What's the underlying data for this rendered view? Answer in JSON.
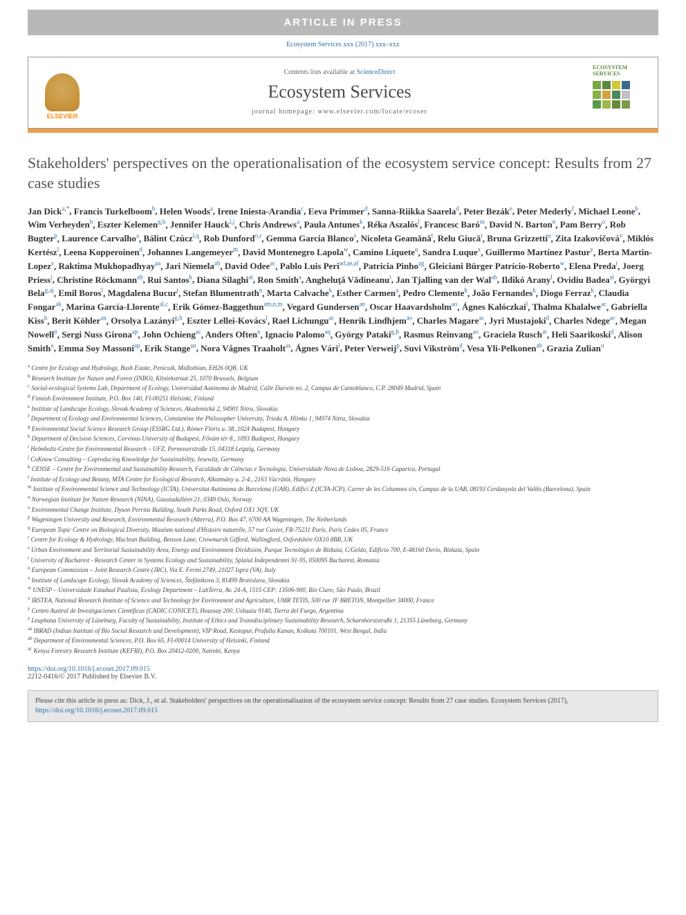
{
  "banner": "ARTICLE IN PRESS",
  "citation_header": "Ecosystem Services xxx (2017) xxx–xxx",
  "header": {
    "contents_prefix": "Contents lists available at ",
    "contents_link": "ScienceDirect",
    "journal_name": "Ecosystem Services",
    "homepage_label": "journal homepage: www.elsevier.com/locate/ecoser",
    "elsevier_label": "ELSEVIER",
    "journal_logo_text": "ECOSYSTEM SERVICES"
  },
  "title": "Stakeholders' perspectives on the operationalisation of the ecosystem service concept: Results from 27 case studies",
  "authors": [
    {
      "n": "Jan Dick",
      "s": "a,*"
    },
    {
      "n": "Francis Turkelboom",
      "s": "b"
    },
    {
      "n": "Helen Woods",
      "s": "a"
    },
    {
      "n": "Irene Iniesta-Arandia",
      "s": "c"
    },
    {
      "n": "Eeva Primmer",
      "s": "d"
    },
    {
      "n": "Sanna-Riikka Saarela",
      "s": "d"
    },
    {
      "n": "Peter Bezák",
      "s": "e"
    },
    {
      "n": "Peter Mederly",
      "s": "f"
    },
    {
      "n": "Michael Leone",
      "s": "b"
    },
    {
      "n": "Wim Verheyden",
      "s": "b"
    },
    {
      "n": "Eszter Kelemen",
      "s": "g,h"
    },
    {
      "n": "Jennifer Hauck",
      "s": "i,j"
    },
    {
      "n": "Chris Andrews",
      "s": "a"
    },
    {
      "n": "Paula Antunes",
      "s": "k"
    },
    {
      "n": "Réka Aszalós",
      "s": "l"
    },
    {
      "n": "Francesc Baró",
      "s": "m"
    },
    {
      "n": "David N. Barton",
      "s": "n"
    },
    {
      "n": "Pam Berry",
      "s": "o"
    },
    {
      "n": "Rob Bugter",
      "s": "p"
    },
    {
      "n": "Laurence Carvalho",
      "s": "a"
    },
    {
      "n": "Bálint Czúcz",
      "s": "l,q"
    },
    {
      "n": "Rob Dunford",
      "s": "o,r"
    },
    {
      "n": "Gemma Garcia Blanco",
      "s": "s"
    },
    {
      "n": "Nicoleta Geamănă",
      "s": "t"
    },
    {
      "n": "Relu Giucă",
      "s": "t"
    },
    {
      "n": "Bruna Grizzetti",
      "s": "u"
    },
    {
      "n": "Zita Izakovičová",
      "s": "v"
    },
    {
      "n": "Miklós Kertész",
      "s": "l"
    },
    {
      "n": "Leena Kopperoinen",
      "s": "d"
    },
    {
      "n": "Johannes Langemeyer",
      "s": "m"
    },
    {
      "n": "David Montenegro Lapola",
      "s": "w"
    },
    {
      "n": "Camino Liquete",
      "s": "u"
    },
    {
      "n": "Sandra Luque",
      "s": "x"
    },
    {
      "n": "Guillermo Martínez Pastur",
      "s": "y"
    },
    {
      "n": "Berta Martin-Lopez",
      "s": "z"
    },
    {
      "n": "Raktima Mukhopadhyay",
      "s": "aa"
    },
    {
      "n": "Jari Niemela",
      "s": "ab"
    },
    {
      "n": "David Odee",
      "s": "ac"
    },
    {
      "n": "Pablo Luis Peri",
      "s": "ad,ae,af"
    },
    {
      "n": "Patricia Pinho",
      "s": "ag"
    },
    {
      "n": "Gleiciani Bürger Patrício-Roberto",
      "s": "w"
    },
    {
      "n": "Elena Preda",
      "s": "t"
    },
    {
      "n": "Joerg Priess",
      "s": "i"
    },
    {
      "n": "Christine Röckmann",
      "s": "ah"
    },
    {
      "n": "Rui Santos",
      "s": "k"
    },
    {
      "n": "Diana Silaghi",
      "s": "ai"
    },
    {
      "n": "Ron Smith",
      "s": "a"
    },
    {
      "n": "Angheluţă Vădineanu",
      "s": "t"
    },
    {
      "n": "Jan Tjalling van der Wal",
      "s": "ah"
    },
    {
      "n": "Ildikó Arany",
      "s": "l"
    },
    {
      "n": "Ovidiu Badea",
      "s": "ai"
    },
    {
      "n": "Györgyi Bela",
      "s": "g,aj"
    },
    {
      "n": "Emil Boros",
      "s": "l"
    },
    {
      "n": "Magdalena Bucur",
      "s": "t"
    },
    {
      "n": "Stefan Blumentrath",
      "s": "n"
    },
    {
      "n": "Marta Calvache",
      "s": "k"
    },
    {
      "n": "Esther Carmen",
      "s": "a"
    },
    {
      "n": "Pedro Clemente",
      "s": "k"
    },
    {
      "n": "João Fernandes",
      "s": "k"
    },
    {
      "n": "Diogo Ferraz",
      "s": "k"
    },
    {
      "n": "Claudia Fongar",
      "s": "ak"
    },
    {
      "n": "Marina García-Llorente",
      "s": "al,c"
    },
    {
      "n": "Erik Gómez-Baggethun",
      "s": "am,n,m"
    },
    {
      "n": "Vegard Gundersen",
      "s": "an"
    },
    {
      "n": "Oscar Haavardsholm",
      "s": "ao"
    },
    {
      "n": "Ágnes Kalóczkai",
      "s": "l"
    },
    {
      "n": "Thalma Khalalwe",
      "s": "ac"
    },
    {
      "n": "Gabriella Kiss",
      "s": "h"
    },
    {
      "n": "Berit Köhler",
      "s": "an"
    },
    {
      "n": "Orsolya Lazányi",
      "s": "g,h"
    },
    {
      "n": "Eszter Lellei-Kovács",
      "s": "l"
    },
    {
      "n": "Rael Lichungu",
      "s": "ac"
    },
    {
      "n": "Henrik Lindhjem",
      "s": "ao"
    },
    {
      "n": "Charles Magare",
      "s": "ac"
    },
    {
      "n": "Jyri Mustajoki",
      "s": "d"
    },
    {
      "n": "Charles Ndege",
      "s": "ac"
    },
    {
      "n": "Megan Nowell",
      "s": "n"
    },
    {
      "n": "Sergi Nuss Girona",
      "s": "ap"
    },
    {
      "n": "John Ochieng",
      "s": "ac"
    },
    {
      "n": "Anders Often",
      "s": "n"
    },
    {
      "n": "Ignacio Palomo",
      "s": "aq"
    },
    {
      "n": "György Pataki",
      "s": "g,h"
    },
    {
      "n": "Rasmus Reinvang",
      "s": "ao"
    },
    {
      "n": "Graciela Rusch",
      "s": "ar"
    },
    {
      "n": "Heli Saarikoski",
      "s": "d"
    },
    {
      "n": "Alison Smith",
      "s": "o"
    },
    {
      "n": "Emma Soy Massoni",
      "s": "ap"
    },
    {
      "n": "Erik Stange",
      "s": "an"
    },
    {
      "n": "Nora Vågnes Traaholt",
      "s": "as"
    },
    {
      "n": "Ágnes Vári",
      "s": "l"
    },
    {
      "n": "Peter Verweij",
      "s": "p"
    },
    {
      "n": "Suvi Vikström",
      "s": "d"
    },
    {
      "n": "Vesa Yli-Pelkonen",
      "s": "ab"
    },
    {
      "n": "Grazia Zulian",
      "s": "u"
    }
  ],
  "affiliations": [
    {
      "s": "a",
      "t": "Centre for Ecology and Hydrology, Bush Estate, Penicuik, Midlothian, EH26 0QB, UK"
    },
    {
      "s": "b",
      "t": "Research Institute for Nature and Forest (INBO), Kliniekstraat 25, 1070 Brussels, Belgium"
    },
    {
      "s": "c",
      "t": "Social-ecological Systems Lab, Department of Ecology, Universidad Autónoma de Madrid, Calle Darwin no. 2, Campus de Cantoblanco, C.P. 28049 Madrid, Spain"
    },
    {
      "s": "d",
      "t": "Finnish Environment Institute, P.O. Box 140, FI-00251 Helsinki, Finland"
    },
    {
      "s": "e",
      "t": "Institute of Landscape Ecology, Slovak Academy of Sciences, Akademická 2, 94901 Nitra, Slovakia"
    },
    {
      "s": "f",
      "t": "Department of Ecology and Environmental Sciences, Constantine the Philosopher University, Trieda A. Hlinku 1, 94974 Nitra, Slovakia"
    },
    {
      "s": "g",
      "t": "Environmental Social Science Research Group (ESSRG Ltd.), Rómer Flóris u. 38.,1024 Budapest, Hungary"
    },
    {
      "s": "h",
      "t": "Department of Decision Sciences, Corvinus University of Budapest, Fővám tér 8., 1093 Budapest, Hungary"
    },
    {
      "s": "i",
      "t": "Helmholtz-Centre for Environmental Research – UFZ, Permoserstraße 15, 04318 Leipzig, Germany"
    },
    {
      "s": "j",
      "t": "CoKnow Consulting – Coproducing Knowledge for Sustainability, Jesewitz, Germany"
    },
    {
      "s": "k",
      "t": "CENSE – Centre for Environmental and Sustainability Research, Faculdade de Ciências e Tecnologia, Universidade Nova de Lisboa, 2829-516 Caparica, Portugal"
    },
    {
      "s": "l",
      "t": "Institute of Ecology and Botany, MTA Centre for Ecological Research, Alkotmány u. 2-4., 2163 Vácrátót, Hungary"
    },
    {
      "s": "m",
      "t": "Institute of Environmental Science and Technology (ICTA), Universitat Autònoma de Barcelona (UAB), Edifici Z (ICTA-ICP), Carrer de les Columnes s/n, Campus de la UAB, 08193 Cerdanyola del Vallès (Barcelona), Spain"
    },
    {
      "s": "n",
      "t": "Norwegian Institute for Nature Research (NINA), Gaustadalléen 21, 0349 Oslo, Norway"
    },
    {
      "s": "o",
      "t": "Environmental Change Institute, Dyson Perrins Building, South Parks Road, Oxford OX1 3QY, UK"
    },
    {
      "s": "p",
      "t": "Wageningen University and Research, Environmental Research (Alterra), P.O. Box 47, 6700 AA Wageningen, The Netherlands"
    },
    {
      "s": "q",
      "t": "European Topic Centre on Biological Diversity, Muséum national d'Histoire naturelle, 57 rue Cuvier, FR-75231 Paris, Paris Cedex 05, France"
    },
    {
      "s": "r",
      "t": "Centre for Ecology & Hydrology, Maclean Building, Benson Lane, Crowmarsh Gifford, Wallingford, Oxfordshire OX10 8BB, UK"
    },
    {
      "s": "s",
      "t": "Urban Environment and Territorial Sustainability Area, Energy and Environment Dividision, Parque Tecnológico de Bizkaia, C/Geldo, Edificio 700, E-48160 Derio, Bizkaia, Spain"
    },
    {
      "s": "t",
      "t": "University of Bucharest - Research Center in Systems Ecology and Sustainability, Splaiul Independentei 91-95, 050095 Bucharest, Romania"
    },
    {
      "s": "u",
      "t": "European Commission – Joint Research Centre (JRC), Via E. Fermi 2749, 21027 Ispra (VA), Italy"
    },
    {
      "s": "v",
      "t": "Institute of Landscape Ecology, Slovak Academy of Sciences, Štefánikova 3, 81499 Bratislava, Slovakia"
    },
    {
      "s": "w",
      "t": "UNESP – Universidade Estadual Paulista, Ecology Department – LabTerra, Av. 24-A, 1515 CEP: 13506-900, Rio Claro, São Paulo, Brazil"
    },
    {
      "s": "x",
      "t": "IRSTEA, National Research Institute of Science and Technology for Environment and Agriculture, UMR TETIS, 500 rue JF BRETON, Montpellier 34000, France"
    },
    {
      "s": "y",
      "t": "Centro Austral de Investigaciones Científicas (CADIC CONICET), Houssay 200, Ushuaia 9140, Tierra del Fuego, Argentina"
    },
    {
      "s": "z",
      "t": "Leuphana University of Lüneburg, Faculty of Sustainability, Institute of Ethics and Transdisciplinary Sustainability Research, Scharnhorststraße 1, 21355 Lüneburg, Germany"
    },
    {
      "s": "aa",
      "t": "IBRAD (Indian Institute of Bio Social Research and Development), VIP Road, Kestopur, Prafulla Kanan, Kolkata 700101, West Bengal, India"
    },
    {
      "s": "ab",
      "t": "Department of Environmental Sciences, P.O. Box 65, FI-00014 University of Helsinki, Finland"
    },
    {
      "s": "ac",
      "t": "Kenya Forestry Research Institute (KEFRI), P.O. Box 20412-0200, Nairobi, Kenya"
    }
  ],
  "doi": {
    "url": "https://doi.org/10.1016/j.ecoser.2017.09.015",
    "copyright": "2212-0416/© 2017 Published by Elsevier B.V."
  },
  "cite_box": {
    "prefix": "Please cite this article in press as: Dick, J., et al. Stakeholders' perspectives on the operationalisation of the ecosystem service concept: Results from 27 case studies. Ecosystem Services (2017), ",
    "link": "https://doi.org/10.1016/j.ecoser.2017.09.015"
  },
  "logo_colors": [
    "#7aa646",
    "#5b8a3a",
    "#d4c63a",
    "#3a6a8a",
    "#8ab04a",
    "#d4a040",
    "#4a8a5a",
    "#c0c0c0",
    "#5a9a4a",
    "#a0b84a",
    "#6a8a3a",
    "#7a9a4a"
  ]
}
